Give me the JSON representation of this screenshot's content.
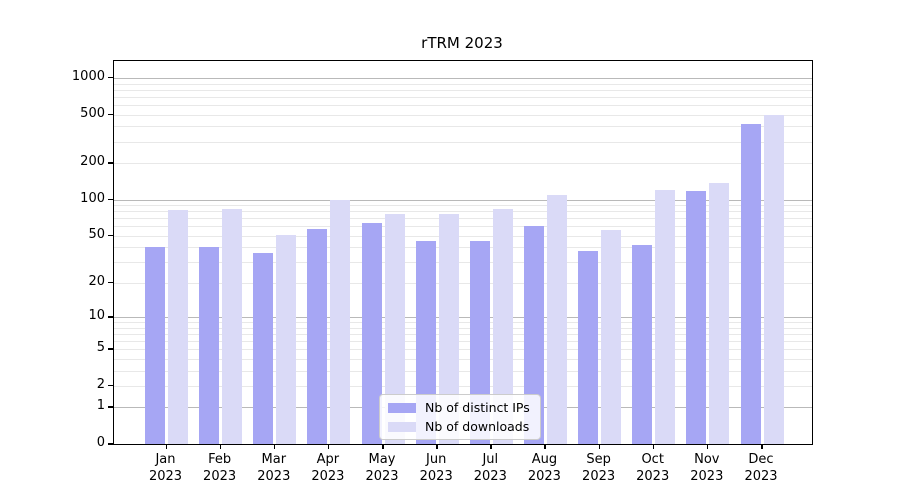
{
  "chart_data": {
    "type": "bar",
    "title": "rTRM 2023",
    "xlabel": "",
    "ylabel": "",
    "yscale": "log1p",
    "grid": "on",
    "legend_position": "lower center",
    "yticks": [
      0,
      1,
      2,
      5,
      10,
      20,
      50,
      100,
      200,
      500,
      1000
    ],
    "ylim": [
      0,
      1400
    ],
    "categories": [
      "Jan",
      "Feb",
      "Mar",
      "Apr",
      "May",
      "Jun",
      "Jul",
      "Aug",
      "Sep",
      "Oct",
      "Nov",
      "Dec"
    ],
    "year_label": "2023",
    "series": [
      {
        "name": "Nb of distinct IPs",
        "color": "#a6a6f4",
        "values": [
          40,
          40,
          36,
          57,
          64,
          45,
          45,
          60,
          37,
          42,
          117,
          420
        ]
      },
      {
        "name": "Nb of downloads",
        "color": "#dadaf7",
        "values": [
          82,
          84,
          51,
          99,
          76,
          76,
          83,
          110,
          56,
          120,
          138,
          500
        ]
      }
    ],
    "colors": {
      "major_gridline": "#b9b9b9",
      "minor_gridline": "#e8e8e8",
      "axis": "#000000",
      "legend_border": "#cccccc"
    }
  }
}
